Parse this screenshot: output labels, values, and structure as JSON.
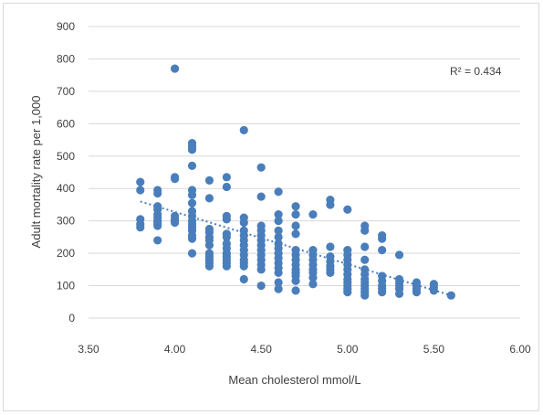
{
  "chart_data": {
    "type": "scatter",
    "title": "",
    "xlabel": "Mean cholesterol mmol/L",
    "ylabel": "Adult mortality rate per 1,000",
    "xlim": [
      3.5,
      6.0
    ],
    "ylim": [
      0,
      900
    ],
    "x_ticks": [
      "3.50",
      "4.00",
      "4.50",
      "5.00",
      "5.50",
      "6.00"
    ],
    "y_ticks": [
      "0",
      "100",
      "200",
      "300",
      "400",
      "500",
      "600",
      "700",
      "800",
      "900"
    ],
    "grid": "horizontal",
    "marker_color": "#4a7ebb",
    "trendline": {
      "type": "linear",
      "style": "dotted",
      "color": "#4a7ebb",
      "x": [
        3.8,
        5.6
      ],
      "y": [
        360,
        70
      ]
    },
    "annotation": "R² = 0.434",
    "points": [
      [
        3.8,
        420
      ],
      [
        3.8,
        395
      ],
      [
        3.8,
        305
      ],
      [
        3.8,
        290
      ],
      [
        3.8,
        280
      ],
      [
        3.9,
        395
      ],
      [
        3.9,
        385
      ],
      [
        3.9,
        345
      ],
      [
        3.9,
        335
      ],
      [
        3.9,
        320
      ],
      [
        3.9,
        310
      ],
      [
        3.9,
        300
      ],
      [
        3.9,
        295
      ],
      [
        3.9,
        290
      ],
      [
        3.9,
        285
      ],
      [
        3.9,
        240
      ],
      [
        4.0,
        770
      ],
      [
        4.0,
        435
      ],
      [
        4.0,
        430
      ],
      [
        4.0,
        315
      ],
      [
        4.0,
        305
      ],
      [
        4.0,
        300
      ],
      [
        4.0,
        295
      ],
      [
        4.1,
        540
      ],
      [
        4.1,
        530
      ],
      [
        4.1,
        520
      ],
      [
        4.1,
        470
      ],
      [
        4.1,
        395
      ],
      [
        4.1,
        380
      ],
      [
        4.1,
        355
      ],
      [
        4.1,
        330
      ],
      [
        4.1,
        315
      ],
      [
        4.1,
        300
      ],
      [
        4.1,
        290
      ],
      [
        4.1,
        280
      ],
      [
        4.1,
        270
      ],
      [
        4.1,
        255
      ],
      [
        4.1,
        245
      ],
      [
        4.1,
        200
      ],
      [
        4.2,
        425
      ],
      [
        4.2,
        370
      ],
      [
        4.2,
        275
      ],
      [
        4.2,
        265
      ],
      [
        4.2,
        250
      ],
      [
        4.2,
        240
      ],
      [
        4.2,
        225
      ],
      [
        4.2,
        200
      ],
      [
        4.2,
        190
      ],
      [
        4.2,
        180
      ],
      [
        4.2,
        170
      ],
      [
        4.2,
        160
      ],
      [
        4.3,
        435
      ],
      [
        4.3,
        405
      ],
      [
        4.3,
        315
      ],
      [
        4.3,
        305
      ],
      [
        4.3,
        260
      ],
      [
        4.3,
        250
      ],
      [
        4.3,
        230
      ],
      [
        4.3,
        215
      ],
      [
        4.3,
        200
      ],
      [
        4.3,
        190
      ],
      [
        4.3,
        180
      ],
      [
        4.3,
        170
      ],
      [
        4.3,
        160
      ],
      [
        4.4,
        580
      ],
      [
        4.4,
        310
      ],
      [
        4.4,
        295
      ],
      [
        4.4,
        270
      ],
      [
        4.4,
        255
      ],
      [
        4.4,
        240
      ],
      [
        4.4,
        225
      ],
      [
        4.4,
        210
      ],
      [
        4.4,
        195
      ],
      [
        4.4,
        180
      ],
      [
        4.4,
        170
      ],
      [
        4.4,
        160
      ],
      [
        4.4,
        120
      ],
      [
        4.5,
        465
      ],
      [
        4.5,
        375
      ],
      [
        4.5,
        285
      ],
      [
        4.5,
        270
      ],
      [
        4.5,
        255
      ],
      [
        4.5,
        240
      ],
      [
        4.5,
        225
      ],
      [
        4.5,
        210
      ],
      [
        4.5,
        195
      ],
      [
        4.5,
        180
      ],
      [
        4.5,
        165
      ],
      [
        4.5,
        150
      ],
      [
        4.5,
        100
      ],
      [
        4.6,
        390
      ],
      [
        4.6,
        320
      ],
      [
        4.6,
        300
      ],
      [
        4.6,
        270
      ],
      [
        4.6,
        250
      ],
      [
        4.6,
        230
      ],
      [
        4.6,
        215
      ],
      [
        4.6,
        200
      ],
      [
        4.6,
        185
      ],
      [
        4.6,
        170
      ],
      [
        4.6,
        155
      ],
      [
        4.6,
        140
      ],
      [
        4.6,
        110
      ],
      [
        4.6,
        90
      ],
      [
        4.7,
        345
      ],
      [
        4.7,
        320
      ],
      [
        4.7,
        285
      ],
      [
        4.7,
        260
      ],
      [
        4.7,
        210
      ],
      [
        4.7,
        195
      ],
      [
        4.7,
        180
      ],
      [
        4.7,
        165
      ],
      [
        4.7,
        150
      ],
      [
        4.7,
        140
      ],
      [
        4.7,
        130
      ],
      [
        4.7,
        115
      ],
      [
        4.7,
        85
      ],
      [
        4.8,
        320
      ],
      [
        4.8,
        210
      ],
      [
        4.8,
        195
      ],
      [
        4.8,
        180
      ],
      [
        4.8,
        165
      ],
      [
        4.8,
        150
      ],
      [
        4.8,
        140
      ],
      [
        4.8,
        125
      ],
      [
        4.8,
        105
      ],
      [
        4.9,
        365
      ],
      [
        4.9,
        350
      ],
      [
        4.9,
        220
      ],
      [
        4.9,
        190
      ],
      [
        4.9,
        175
      ],
      [
        4.9,
        160
      ],
      [
        4.9,
        150
      ],
      [
        4.9,
        140
      ],
      [
        5.0,
        335
      ],
      [
        5.0,
        210
      ],
      [
        5.0,
        195
      ],
      [
        5.0,
        180
      ],
      [
        5.0,
        165
      ],
      [
        5.0,
        150
      ],
      [
        5.0,
        135
      ],
      [
        5.0,
        120
      ],
      [
        5.0,
        110
      ],
      [
        5.0,
        100
      ],
      [
        5.0,
        90
      ],
      [
        5.0,
        80
      ],
      [
        5.1,
        285
      ],
      [
        5.1,
        270
      ],
      [
        5.1,
        220
      ],
      [
        5.1,
        180
      ],
      [
        5.1,
        150
      ],
      [
        5.1,
        135
      ],
      [
        5.1,
        120
      ],
      [
        5.1,
        110
      ],
      [
        5.1,
        100
      ],
      [
        5.1,
        90
      ],
      [
        5.1,
        80
      ],
      [
        5.1,
        70
      ],
      [
        5.2,
        255
      ],
      [
        5.2,
        245
      ],
      [
        5.2,
        210
      ],
      [
        5.2,
        130
      ],
      [
        5.2,
        115
      ],
      [
        5.2,
        100
      ],
      [
        5.2,
        90
      ],
      [
        5.2,
        80
      ],
      [
        5.3,
        195
      ],
      [
        5.3,
        120
      ],
      [
        5.3,
        110
      ],
      [
        5.3,
        100
      ],
      [
        5.3,
        90
      ],
      [
        5.3,
        75
      ],
      [
        5.4,
        110
      ],
      [
        5.4,
        100
      ],
      [
        5.4,
        90
      ],
      [
        5.4,
        80
      ],
      [
        5.5,
        105
      ],
      [
        5.5,
        95
      ],
      [
        5.5,
        85
      ],
      [
        5.6,
        70
      ]
    ]
  }
}
